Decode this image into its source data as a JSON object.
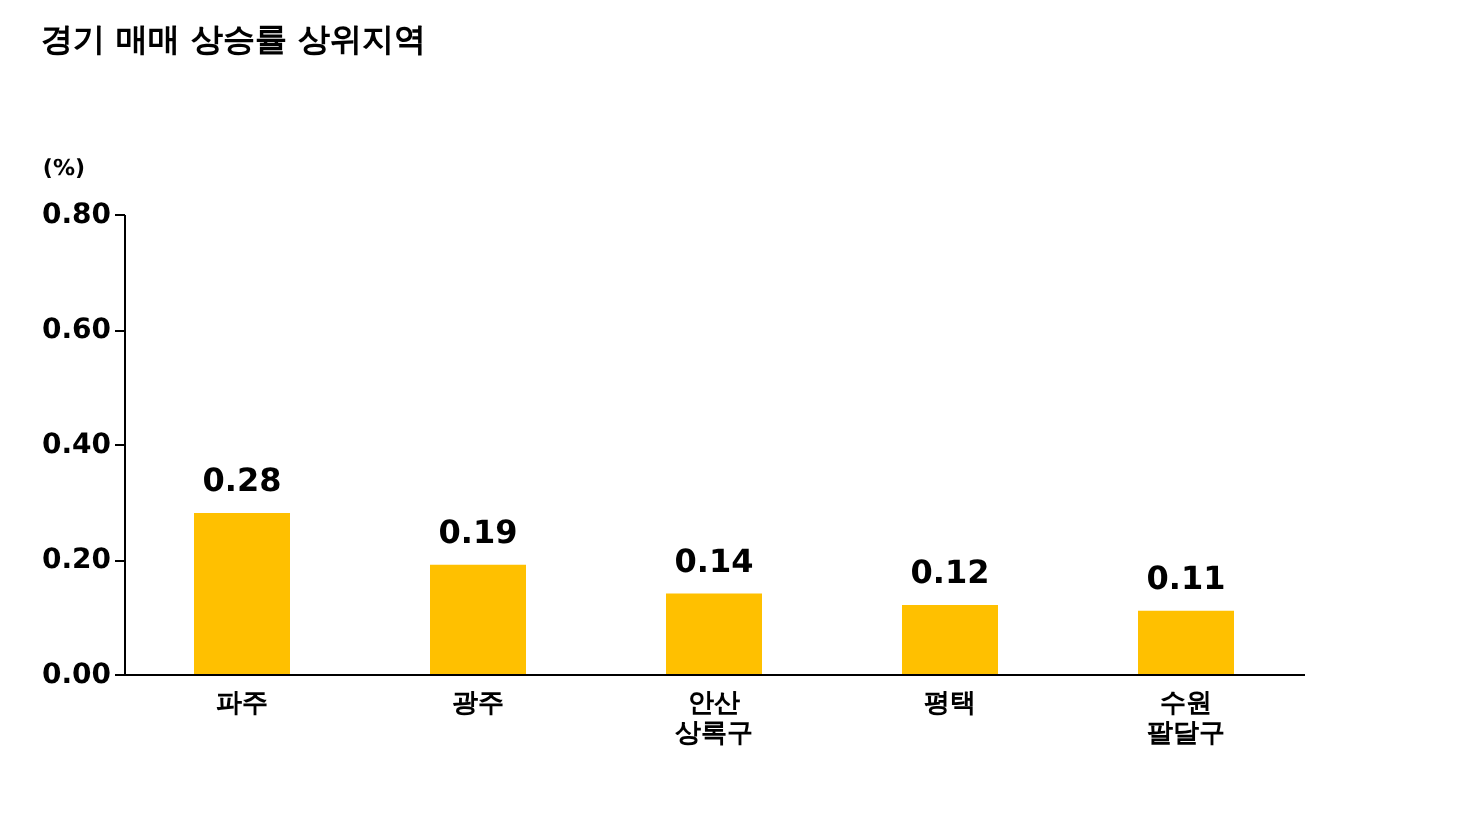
{
  "chart_data": {
    "type": "bar",
    "title": "경기 매매 상승률 상위지역",
    "ylabel": "(%)",
    "categories": [
      "파주",
      "광주",
      "안산 상록구",
      "평택",
      "수원 팔달구"
    ],
    "values": [
      0.28,
      0.19,
      0.14,
      0.12,
      0.11
    ],
    "color": "#ffc000",
    "ylim": [
      0,
      0.8
    ],
    "yticks": [
      {
        "value": 0,
        "label": "0.00"
      },
      {
        "value": 0.2,
        "label": "0.20"
      },
      {
        "value": 0.4,
        "label": "0.40"
      },
      {
        "value": 0.6,
        "label": "0.60"
      },
      {
        "value": 0.8,
        "label": "0.80"
      }
    ],
    "data_labels": true
  }
}
